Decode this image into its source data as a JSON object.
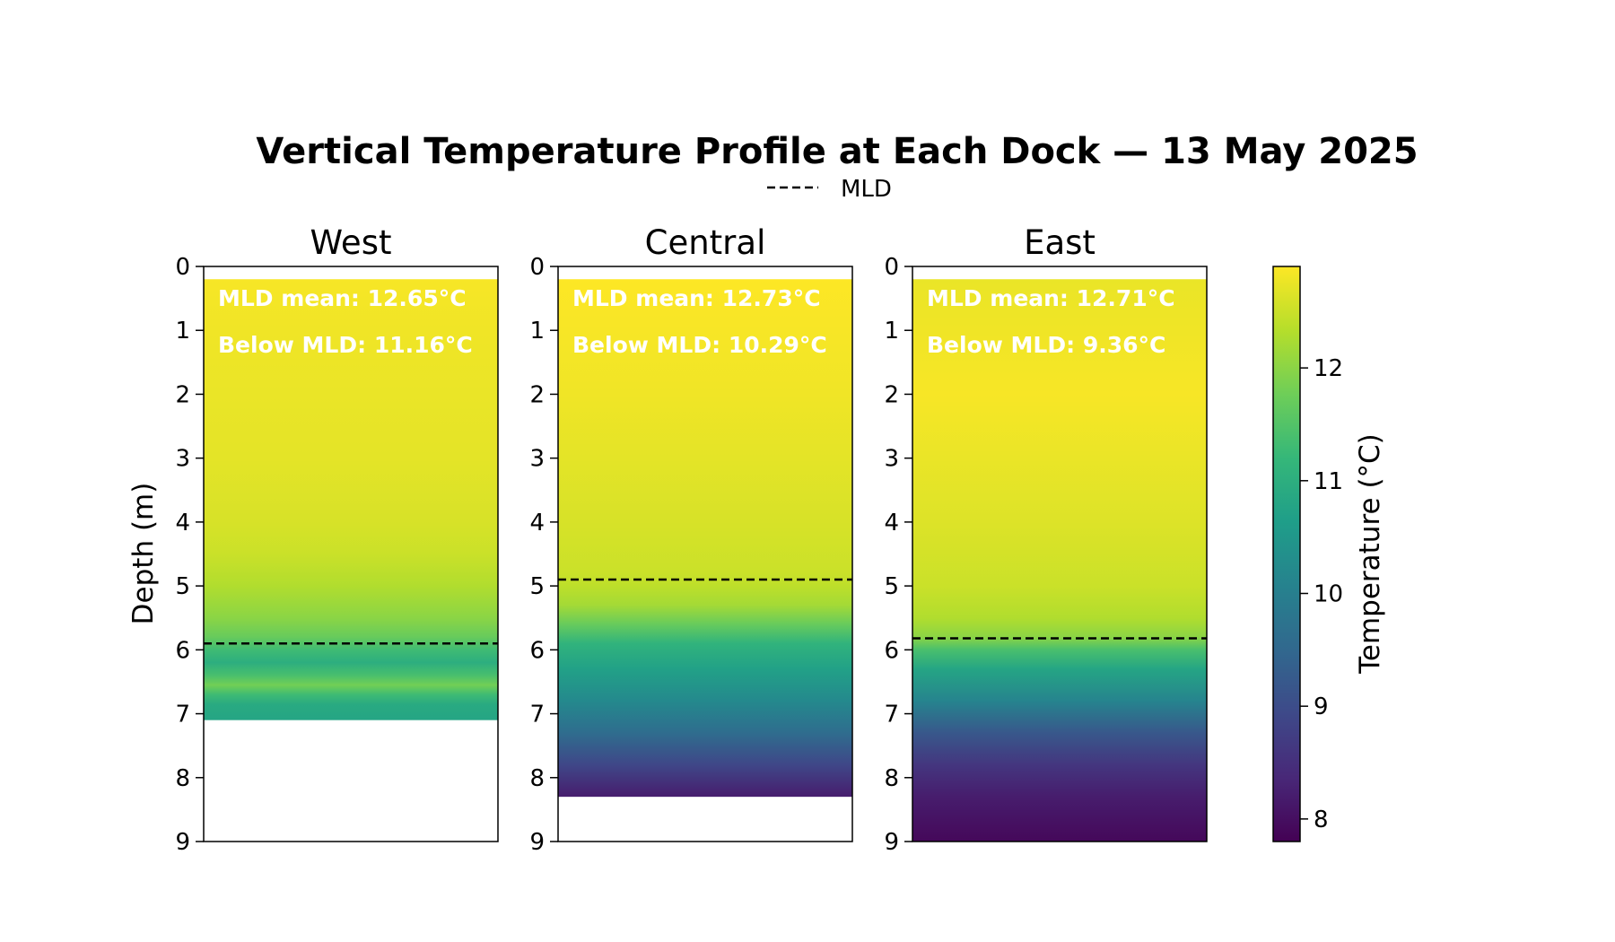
{
  "chart_data": {
    "type": "heatmap",
    "title": "Vertical Temperature Profile at Each Dock — 13 May 2025",
    "ylabel": "Depth (m)",
    "ylim": [
      0,
      9
    ],
    "y_inverted": true,
    "yticks": [
      0,
      1,
      2,
      3,
      4,
      5,
      6,
      7,
      8,
      9
    ],
    "legend": {
      "entries": [
        "MLD"
      ],
      "placement": "top-center"
    },
    "colormap": "viridis",
    "colorbar": {
      "label": "Temperature (°C)",
      "range": [
        7.8,
        12.9
      ],
      "ticks": [
        8,
        9,
        10,
        11,
        12
      ]
    },
    "panels": [
      {
        "name": "West",
        "mld": 5.9,
        "annotations": [
          "MLD mean: 12.65°C",
          "Below MLD: 11.16°C"
        ],
        "profile": [
          [
            0.2,
            12.85
          ],
          [
            1.0,
            12.8
          ],
          [
            2.0,
            12.75
          ],
          [
            3.0,
            12.7
          ],
          [
            4.0,
            12.6
          ],
          [
            4.5,
            12.5
          ],
          [
            5.0,
            12.3
          ],
          [
            5.5,
            12.0
          ],
          [
            5.8,
            11.7
          ],
          [
            6.0,
            11.3
          ],
          [
            6.2,
            11.0
          ],
          [
            6.4,
            11.4
          ],
          [
            6.55,
            11.8
          ],
          [
            6.7,
            11.3
          ],
          [
            6.85,
            10.9
          ],
          [
            7.1,
            10.8
          ]
        ]
      },
      {
        "name": "Central",
        "mld": 4.9,
        "annotations": [
          "MLD mean: 12.73°C",
          "Below MLD: 10.29°C"
        ],
        "profile": [
          [
            0.2,
            12.9
          ],
          [
            1.0,
            12.85
          ],
          [
            2.0,
            12.8
          ],
          [
            3.0,
            12.7
          ],
          [
            4.0,
            12.6
          ],
          [
            4.8,
            12.5
          ],
          [
            5.0,
            12.4
          ],
          [
            5.3,
            12.2
          ],
          [
            5.6,
            11.7
          ],
          [
            5.9,
            11.1
          ],
          [
            6.3,
            10.7
          ],
          [
            6.8,
            10.2
          ],
          [
            7.3,
            9.6
          ],
          [
            7.8,
            8.9
          ],
          [
            8.3,
            8.2
          ]
        ]
      },
      {
        "name": "East",
        "mld": 5.82,
        "annotations": [
          "MLD mean: 12.71°C",
          "Below MLD: 9.36°C"
        ],
        "profile": [
          [
            0.2,
            12.75
          ],
          [
            1.0,
            12.8
          ],
          [
            2.0,
            12.85
          ],
          [
            3.0,
            12.75
          ],
          [
            4.0,
            12.65
          ],
          [
            5.0,
            12.5
          ],
          [
            5.5,
            12.3
          ],
          [
            5.8,
            12.0
          ],
          [
            6.0,
            11.4
          ],
          [
            6.3,
            10.8
          ],
          [
            6.8,
            10.1
          ],
          [
            7.3,
            9.2
          ],
          [
            7.8,
            8.6
          ],
          [
            8.3,
            8.2
          ],
          [
            9.0,
            7.9
          ]
        ]
      }
    ]
  }
}
